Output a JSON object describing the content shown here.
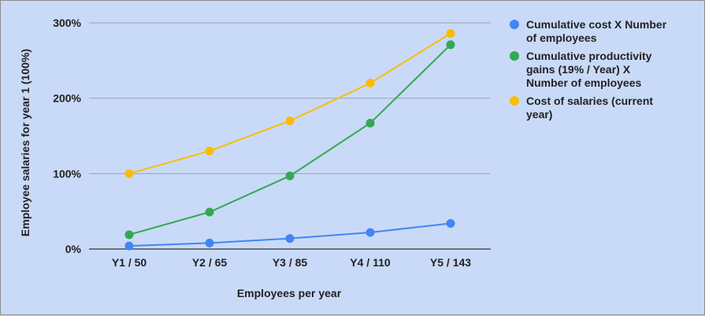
{
  "chart_data": {
    "type": "line",
    "title": "",
    "xlabel": "Employees per year",
    "ylabel": "Employee salaries for year 1 (100%)",
    "categories": [
      "Y1 / 50",
      "Y2 / 65",
      "Y3 / 85",
      "Y4 / 110",
      "Y5 / 143"
    ],
    "ylim": [
      0,
      300
    ],
    "yticks": [
      0,
      100,
      200,
      300
    ],
    "ytick_labels": [
      "0%",
      "100%",
      "200%",
      "300%"
    ],
    "grid": true,
    "legend_position": "right",
    "series": [
      {
        "name": "Cumulative cost X Number of employees",
        "legend_lines": [
          "Cumulative cost X Number",
          "of employees"
        ],
        "color": "#4285f4",
        "values": [
          4,
          8,
          14,
          22,
          34
        ]
      },
      {
        "name": "Cumulative productivity gains (19% / Year) X Number of employees",
        "legend_lines": [
          "Cumulative productivity",
          "gains (19% / Year) X",
          "Number of employees"
        ],
        "color": "#34a853",
        "values": [
          19,
          49,
          97,
          167,
          271
        ]
      },
      {
        "name": "Cost of salaries (current year)",
        "legend_lines": [
          "Cost of salaries (current",
          "year)"
        ],
        "color": "#fbbc04",
        "values": [
          100,
          130,
          170,
          220,
          286
        ]
      }
    ]
  }
}
